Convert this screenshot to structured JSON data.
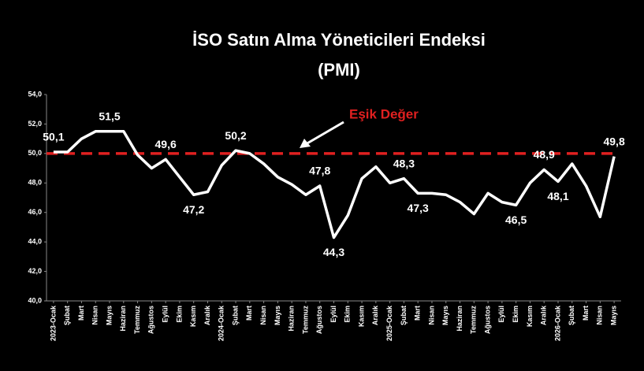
{
  "chart_data": {
    "type": "line",
    "title": "İSO Satın Alma Yöneticileri Endeksi",
    "subtitle": "(PMI)",
    "annotation": "Eşik Değer",
    "threshold": 50,
    "threshold_color": "#e02020",
    "categories": [
      "2023-Ocak",
      "Şubat",
      "Mart",
      "Nisan",
      "Mayıs",
      "Haziran",
      "Temmuz",
      "Ağustos",
      "Eylül",
      "Ekim",
      "Kasım",
      "Aralık",
      "2024-Ocak",
      "Şubat",
      "Mart",
      "Nisan",
      "Mayıs",
      "Haziran",
      "Temmuz",
      "Ağustos",
      "Eylül",
      "Ekim",
      "Kasım",
      "Aralık",
      "2025-Ocak",
      "Şubat",
      "Mart",
      "Nisan",
      "Mayıs",
      "Haziran",
      "Temmuz",
      "Ağustos",
      "Eylül",
      "Ekim",
      "Kasım",
      "Aralık",
      "2026-Ocak",
      "Şubat",
      "Mart",
      "Nisan",
      "Mayıs"
    ],
    "values": [
      50.1,
      50.1,
      51.0,
      51.5,
      51.5,
      51.5,
      49.9,
      49.0,
      49.6,
      48.4,
      47.2,
      47.4,
      49.2,
      50.2,
      50.0,
      49.3,
      48.4,
      47.9,
      47.2,
      47.8,
      44.3,
      45.8,
      48.3,
      49.1,
      48.0,
      48.3,
      47.3,
      47.3,
      47.2,
      46.7,
      45.9,
      47.3,
      46.7,
      46.5,
      48.0,
      48.9,
      48.1,
      49.3,
      47.8,
      45.7,
      49.8
    ],
    "value_labels": [
      "50,1",
      null,
      null,
      null,
      "51,5",
      null,
      null,
      null,
      "49,6",
      null,
      "47,2",
      null,
      null,
      "50,2",
      null,
      null,
      null,
      null,
      null,
      "47,8",
      "44,3",
      null,
      null,
      null,
      null,
      "48,3",
      "47,3",
      null,
      null,
      null,
      null,
      null,
      null,
      "46,5",
      null,
      "48,9",
      "48,1",
      null,
      null,
      null,
      "49,8"
    ],
    "color": "#ffffff",
    "ylim": [
      40,
      54
    ],
    "yticks": [
      {
        "value": 40,
        "label": "40,0"
      },
      {
        "value": 42,
        "label": "42,0"
      },
      {
        "value": 44,
        "label": "44,0"
      },
      {
        "value": 46,
        "label": "46,0"
      },
      {
        "value": 48,
        "label": "48,0"
      },
      {
        "value": 50,
        "label": "50,0"
      },
      {
        "value": 52,
        "label": "52,0"
      },
      {
        "value": 54,
        "label": "54,0"
      }
    ],
    "grid": false
  }
}
